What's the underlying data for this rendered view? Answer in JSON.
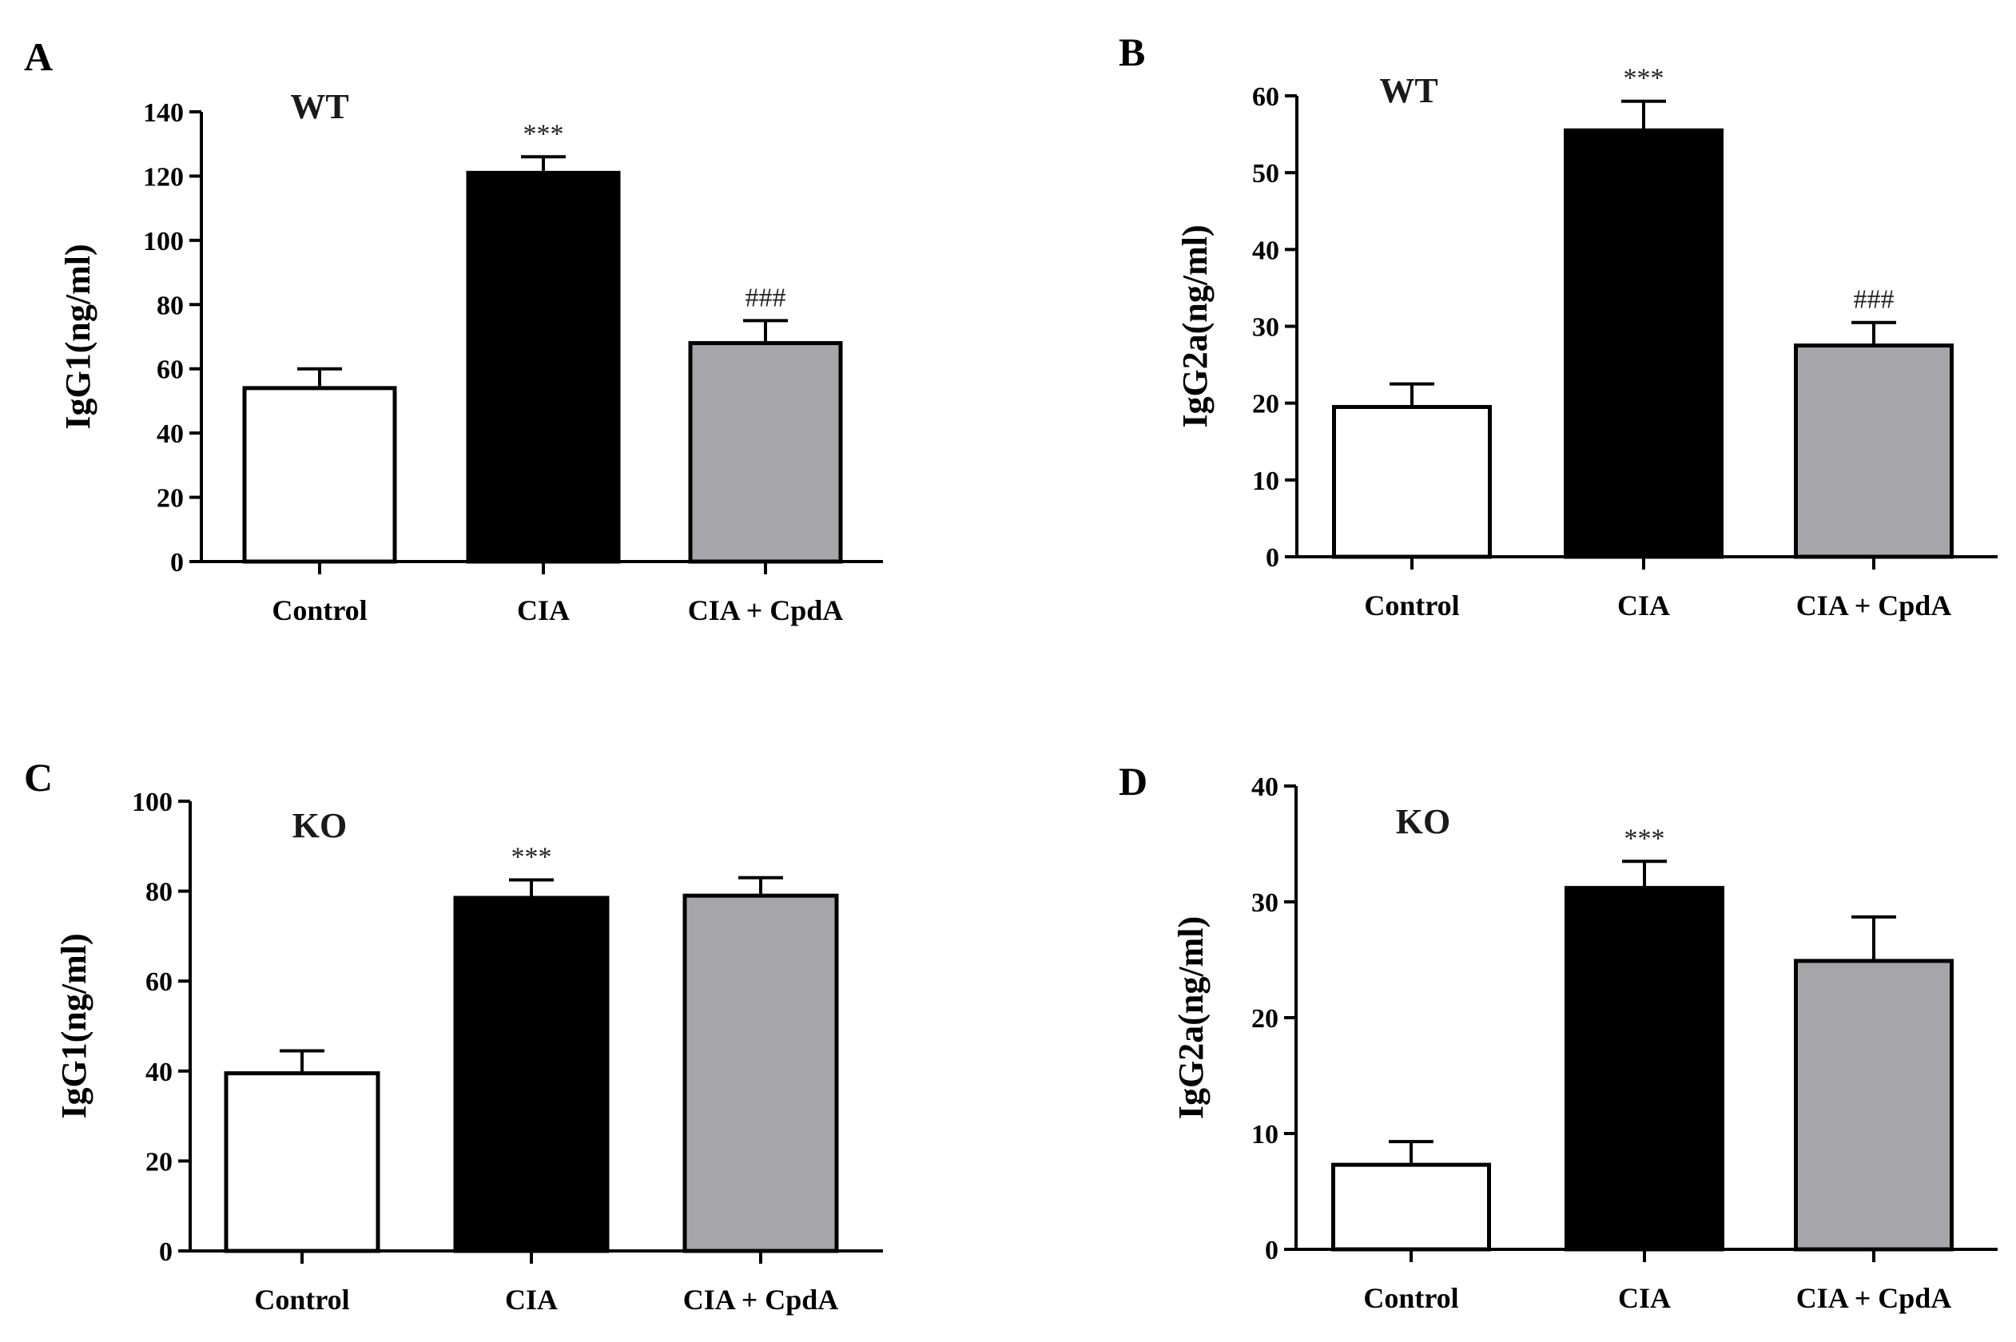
{
  "colors": {
    "Control": "#ffffff",
    "CIA": "#000000",
    "CIA + CpdA": "#a6a5aa",
    "stroke": "#000000"
  },
  "chart_data": [
    {
      "type": "bar",
      "panel": "A",
      "title": "WT",
      "ylabel": "IgG1(ng/ml)",
      "xlabel": "",
      "categories": [
        "Control",
        "CIA",
        "CIA + CpdA"
      ],
      "values": [
        54,
        121,
        68
      ],
      "errors": [
        6,
        5,
        7
      ],
      "significance": [
        "",
        "***",
        "###"
      ],
      "ylim": [
        0,
        140
      ],
      "yticks": [
        0,
        20,
        40,
        60,
        80,
        100,
        120,
        140
      ],
      "grid": false
    },
    {
      "type": "bar",
      "panel": "B",
      "title": "WT",
      "ylabel": "IgG2a(ng/ml)",
      "xlabel": "",
      "categories": [
        "Control",
        "CIA",
        "CIA + CpdA"
      ],
      "values": [
        19.5,
        55.5,
        27.5
      ],
      "errors": [
        3,
        3.8,
        3
      ],
      "significance": [
        "",
        "***",
        "###"
      ],
      "ylim": [
        0,
        60
      ],
      "yticks": [
        0,
        10,
        20,
        30,
        40,
        50,
        60
      ],
      "grid": false
    },
    {
      "type": "bar",
      "panel": "C",
      "title": "KO",
      "ylabel": "IgG1(ng/ml)",
      "xlabel": "",
      "categories": [
        "Control",
        "CIA",
        "CIA + CpdA"
      ],
      "values": [
        39.5,
        78.5,
        79
      ],
      "errors": [
        5,
        4,
        4
      ],
      "significance": [
        "",
        "***",
        ""
      ],
      "ylim": [
        0,
        100
      ],
      "yticks": [
        0,
        20,
        40,
        60,
        80,
        100
      ],
      "grid": false
    },
    {
      "type": "bar",
      "panel": "D",
      "title": "KO",
      "ylabel": "IgG2a(ng/ml)",
      "xlabel": "",
      "categories": [
        "Control",
        "CIA",
        "CIA + CpdA"
      ],
      "values": [
        7.3,
        31.2,
        24.9
      ],
      "errors": [
        2,
        2.3,
        3.8
      ],
      "significance": [
        "",
        "***",
        ""
      ],
      "ylim": [
        0,
        40
      ],
      "yticks": [
        0,
        10,
        20,
        30,
        40
      ],
      "grid": false
    }
  ]
}
